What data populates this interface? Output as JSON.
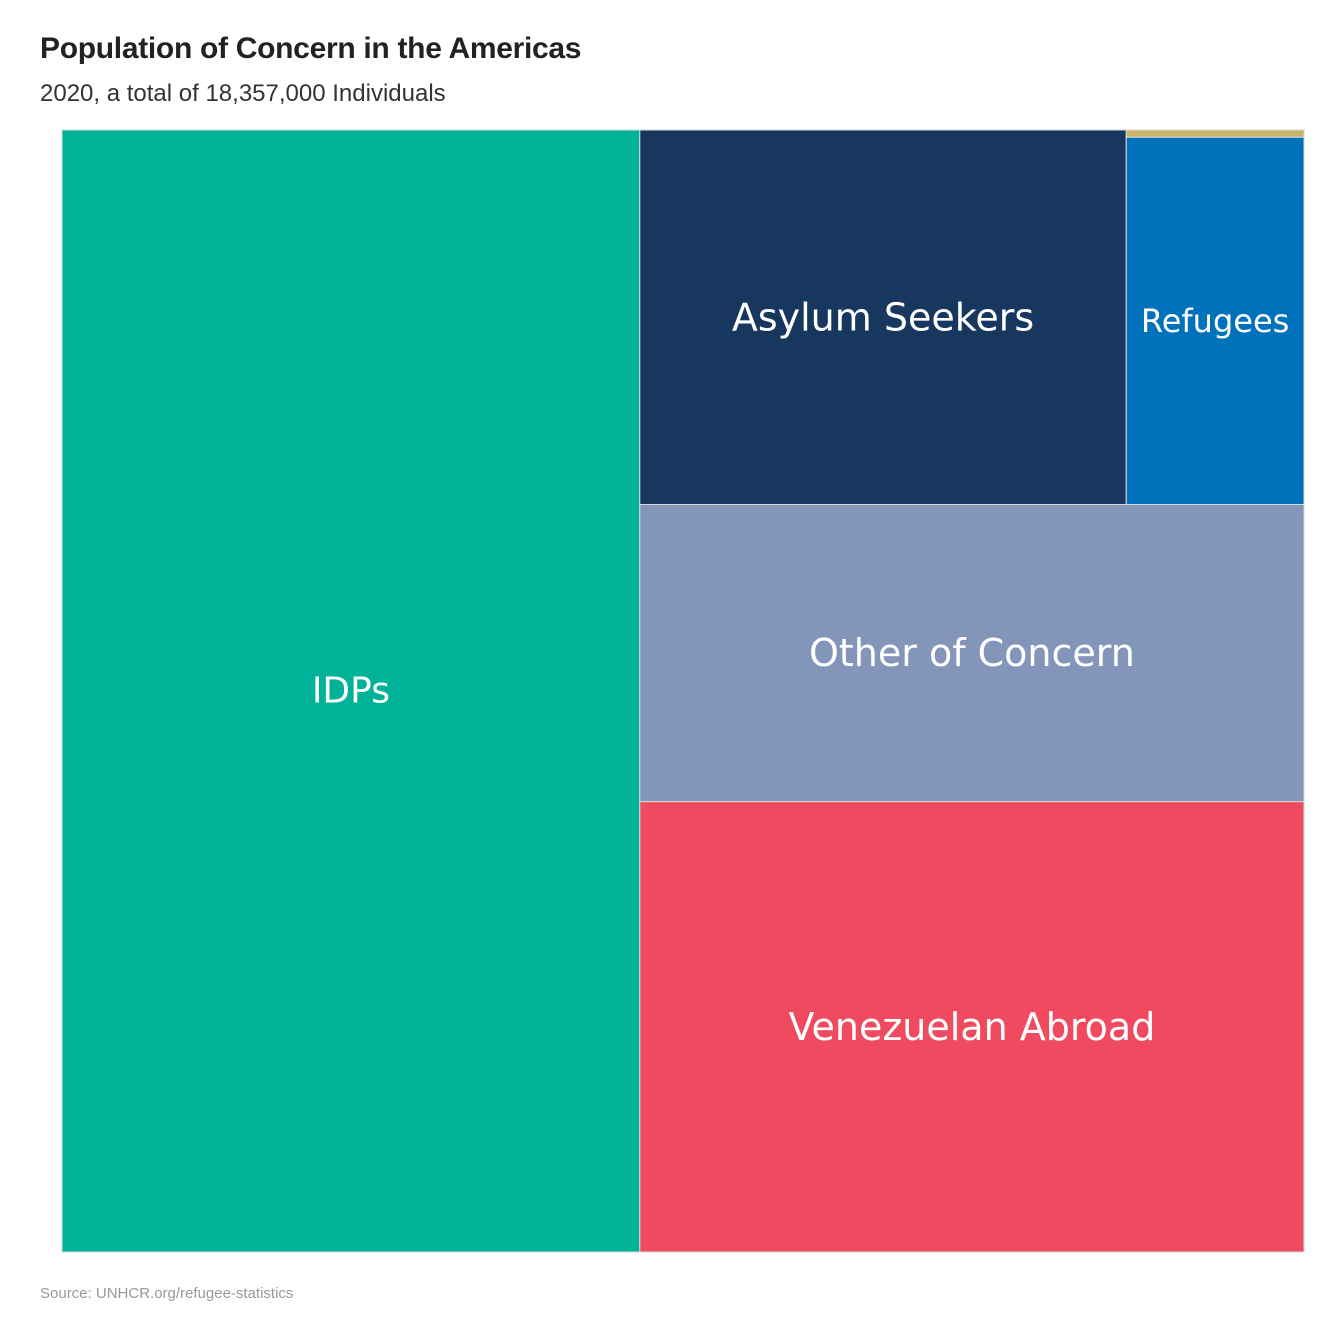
{
  "chart_data": {
    "type": "treemap",
    "title": "Population of Concern in the Americas",
    "subtitle": "2020, a total of 18,357,000 Individuals",
    "source": "Source: UNHCR.org/refugee-statistics",
    "total": 18357000,
    "items": [
      {
        "name": "IDPs",
        "value": 8540000,
        "color": "#00b398",
        "label_size": 36
      },
      {
        "name": "Asylum Seekers",
        "value": 2400000,
        "color": "#18375f",
        "label_size": 38
      },
      {
        "name": "Refugees",
        "value": 860000,
        "color": "#0072bc",
        "label_size": 32
      },
      {
        "name": "Other of Concern",
        "value": 2600000,
        "color": "#8395b9",
        "label_size": 38
      },
      {
        "name": "Venezuelan Abroad",
        "value": 3940000,
        "color": "#ef4a60",
        "label_size": 38
      },
      {
        "name": "",
        "value": 17000,
        "color": "#c9b46a",
        "label_size": 0
      }
    ]
  }
}
